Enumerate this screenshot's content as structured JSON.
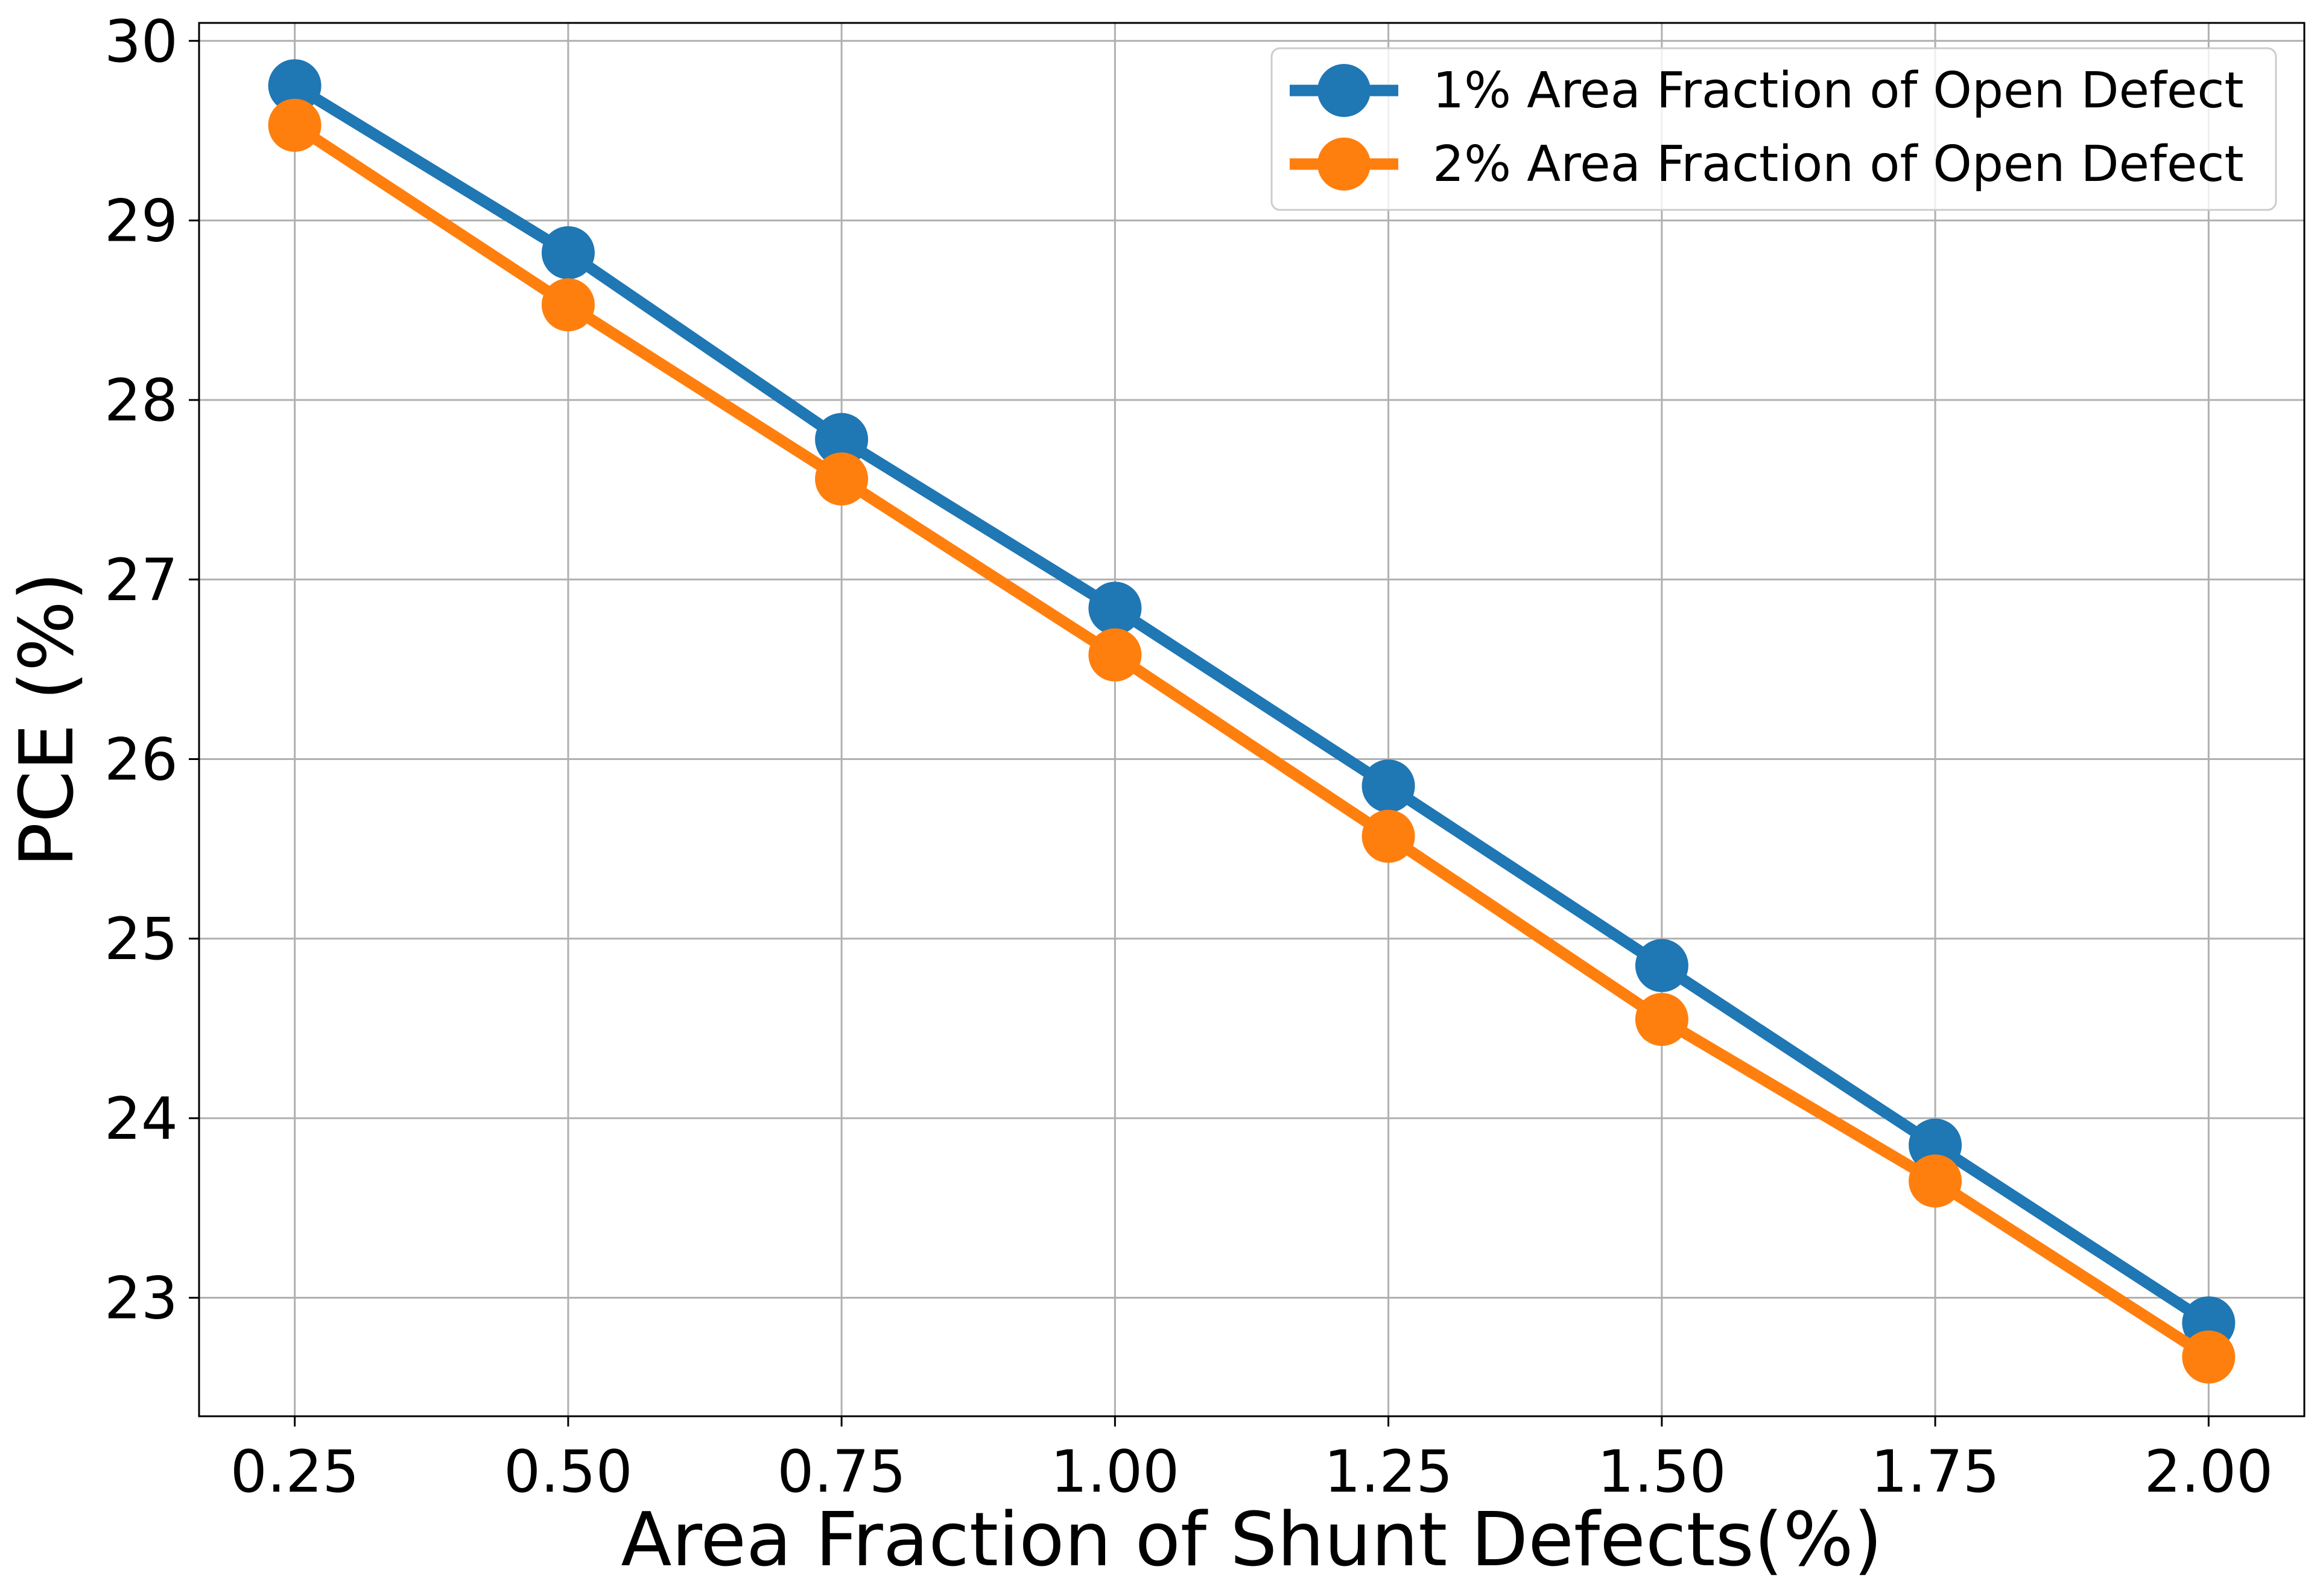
{
  "chart_data": {
    "type": "line",
    "xlabel": "Area Fraction of Shunt Defects(%)",
    "ylabel": "PCE (%)",
    "x": [
      0.25,
      0.5,
      0.75,
      1.0,
      1.25,
      1.5,
      1.75,
      2.0
    ],
    "xticks": [
      "0.25",
      "0.50",
      "0.75",
      "1.00",
      "1.25",
      "1.50",
      "1.75",
      "2.00"
    ],
    "yticks": [
      "23",
      "24",
      "25",
      "26",
      "27",
      "28",
      "29",
      "30"
    ],
    "xlim": [
      0.1625,
      2.0875
    ],
    "ylim": [
      22.34,
      30.1
    ],
    "grid": true,
    "legend_position": "top-right",
    "series": [
      {
        "name": "1% Area Fraction of Open Defect",
        "color": "#1f77b4",
        "values": [
          29.75,
          28.82,
          27.78,
          26.84,
          25.85,
          24.85,
          23.85,
          22.86
        ]
      },
      {
        "name": "2% Area Fraction of Open Defect",
        "color": "#ff7f0e",
        "values": [
          29.53,
          28.53,
          27.56,
          26.58,
          25.57,
          24.55,
          23.65,
          22.67
        ]
      }
    ]
  }
}
